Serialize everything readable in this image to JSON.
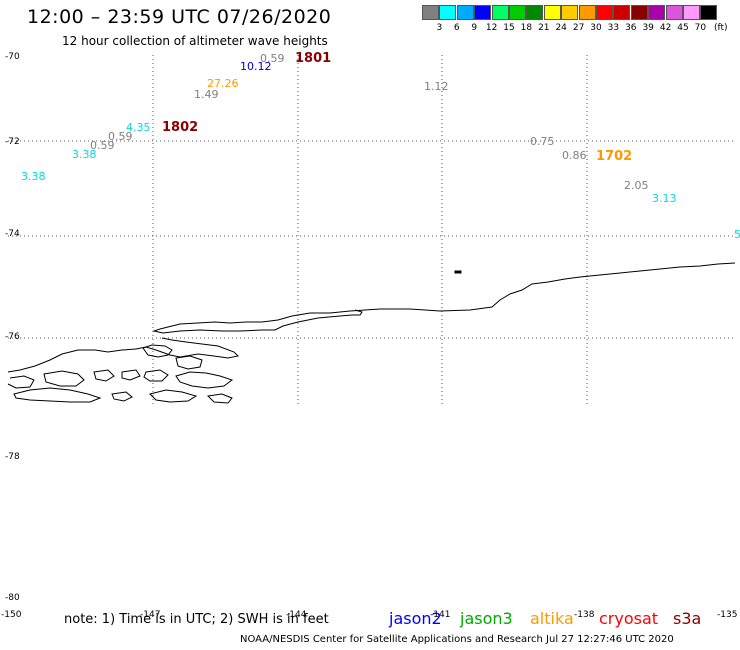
{
  "header": {
    "title": "12:00 – 23:59 UTC 07/26/2020",
    "subtitle": "12 hour collection of altimeter wave heights"
  },
  "scale": {
    "colors": [
      "#808080",
      "#00ffff",
      "#00aaff",
      "#0000ff",
      "#00ff66",
      "#00cc00",
      "#008800",
      "#ffff00",
      "#ffcc00",
      "#ff9900",
      "#ff0000",
      "#cc0000",
      "#880000",
      "#aa00aa",
      "#dd55dd",
      "#ff99ff",
      "#000000"
    ],
    "ticks": [
      "3",
      "6",
      "9",
      "12",
      "15",
      "18",
      "21",
      "24",
      "27",
      "30",
      "33",
      "36",
      "39",
      "42",
      "45",
      "70"
    ],
    "unit": "(ft)"
  },
  "axes": {
    "y_labels": [
      "-70",
      "-72",
      "-74",
      "-76",
      "-78",
      "-80"
    ],
    "x_labels": [
      "-150",
      "-147",
      "-144",
      "-141",
      "-138",
      "-135"
    ]
  },
  "observations": [
    {
      "text": "0.59",
      "color": "#808080"
    },
    {
      "text": "10.12",
      "color": "#0000cc"
    },
    {
      "text": "27.26",
      "color": "#ff9900"
    },
    {
      "text": "1.49",
      "color": "#808080"
    },
    {
      "text": "1.12",
      "color": "#808080"
    },
    {
      "text": "4.35",
      "color": "#00dddd"
    },
    {
      "text": "0.59",
      "color": "#808080"
    },
    {
      "text": "0.59",
      "color": "#808080"
    },
    {
      "text": "3.38",
      "color": "#00dddd"
    },
    {
      "text": "3.38",
      "color": "#00dddd"
    },
    {
      "text": "0.75",
      "color": "#808080"
    },
    {
      "text": "0.86",
      "color": "#808080"
    },
    {
      "text": "2.05",
      "color": "#808080"
    },
    {
      "text": "3.13",
      "color": "#00dddd"
    },
    {
      "text": "5",
      "color": "#00dddd"
    }
  ],
  "time_labels": [
    {
      "text": "1801",
      "color": "#880000"
    },
    {
      "text": "1802",
      "color": "#880000"
    },
    {
      "text": "1702",
      "color": "#ff9900"
    }
  ],
  "footer": {
    "note": "note: 1) Time is in UTC; 2) SWH is in feet",
    "satellites": [
      {
        "name": "jason2",
        "color": "#0000ff"
      },
      {
        "name": "jason3",
        "color": "#00aa00"
      },
      {
        "name": "altika",
        "color": "#ff9900"
      },
      {
        "name": "cryosat",
        "color": "#ff0000"
      },
      {
        "name": "s3a",
        "color": "#880000"
      }
    ],
    "credit": "NOAA/NESDIS Center for Satellite Applications and Research    Jul 27 12:27:46 UTC 2020"
  }
}
